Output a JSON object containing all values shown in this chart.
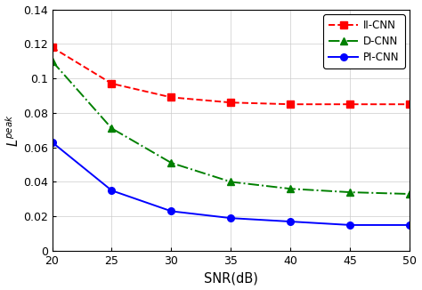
{
  "snr": [
    20,
    25,
    30,
    35,
    40,
    45,
    50
  ],
  "II_CNN": [
    0.118,
    0.097,
    0.089,
    0.086,
    0.085,
    0.085,
    0.085
  ],
  "D_CNN": [
    0.11,
    0.071,
    0.051,
    0.04,
    0.036,
    0.034,
    0.033
  ],
  "PI_CNN": [
    0.063,
    0.035,
    0.023,
    0.019,
    0.017,
    0.015,
    0.015
  ],
  "II_CNN_color": "#FF0000",
  "D_CNN_color": "#008000",
  "PI_CNN_color": "#0000FF",
  "xlabel": "SNR(dB)",
  "ylabel": "$L^{peak}$",
  "ylim": [
    0,
    0.14
  ],
  "xlim": [
    20,
    50
  ],
  "yticks": [
    0,
    0.02,
    0.04,
    0.06,
    0.08,
    0.1,
    0.12,
    0.14
  ],
  "xticks": [
    20,
    25,
    30,
    35,
    40,
    45,
    50
  ],
  "legend_labels": [
    "II-CNN",
    "D-CNN",
    "PI-CNN"
  ],
  "grid": true,
  "title": ""
}
